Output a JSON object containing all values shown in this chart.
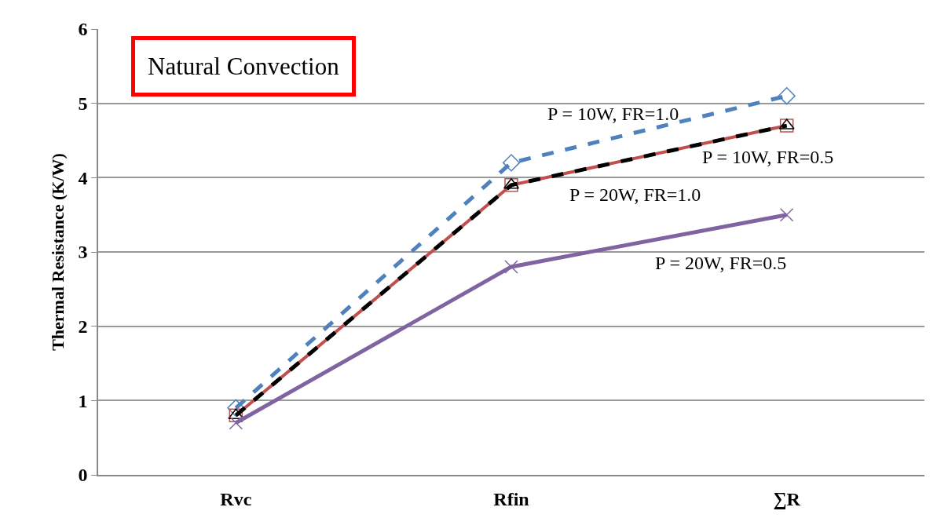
{
  "chart_data": {
    "type": "line",
    "ylabel": "Thermal Resistance (K/W)",
    "categories": [
      "Rvc",
      "Rfin",
      "∑R"
    ],
    "series": [
      {
        "name": "P = 10W, FR=1.0",
        "color": "#4f81bd",
        "values": [
          0.9,
          4.2,
          5.1
        ],
        "marker": "diamond",
        "line_style": "dashed"
      },
      {
        "name": "P = 10W, FR=0.5",
        "color": "#c0504d",
        "values": [
          0.8,
          3.9,
          4.7
        ],
        "marker": "square",
        "line_style": "solid"
      },
      {
        "name": "P = 20W, FR=1.0",
        "color": "#000000",
        "values": [
          0.8,
          3.9,
          4.7
        ],
        "marker": "triangle",
        "line_style": "dashed"
      },
      {
        "name": "P = 20W, FR=0.5",
        "color": "#8064a2",
        "values": [
          0.7,
          2.8,
          3.5
        ],
        "marker": "cross",
        "line_style": "solid"
      }
    ],
    "ylim": [
      0,
      6
    ],
    "yticks": [
      0,
      1,
      2,
      3,
      4,
      5,
      6
    ],
    "grid": "y",
    "legend": false,
    "annotations": [
      "Natural Convection"
    ]
  }
}
